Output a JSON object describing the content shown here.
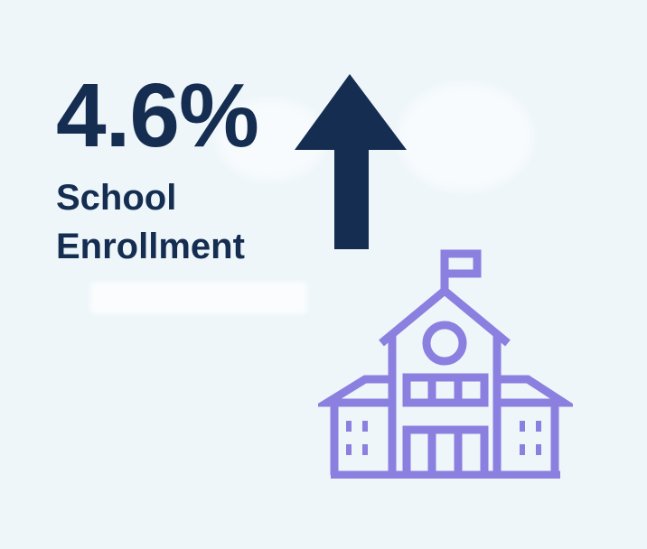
{
  "stat": {
    "value": "4.6%",
    "label_line1": "School",
    "label_line2": "Enrollment"
  },
  "colors": {
    "background": "#eef6fa",
    "text": "#142d51",
    "arrow": "#142d51",
    "icon": "#8b7fe0"
  },
  "icons": {
    "trend": "arrow-up-icon",
    "illustration": "school-building-icon"
  }
}
